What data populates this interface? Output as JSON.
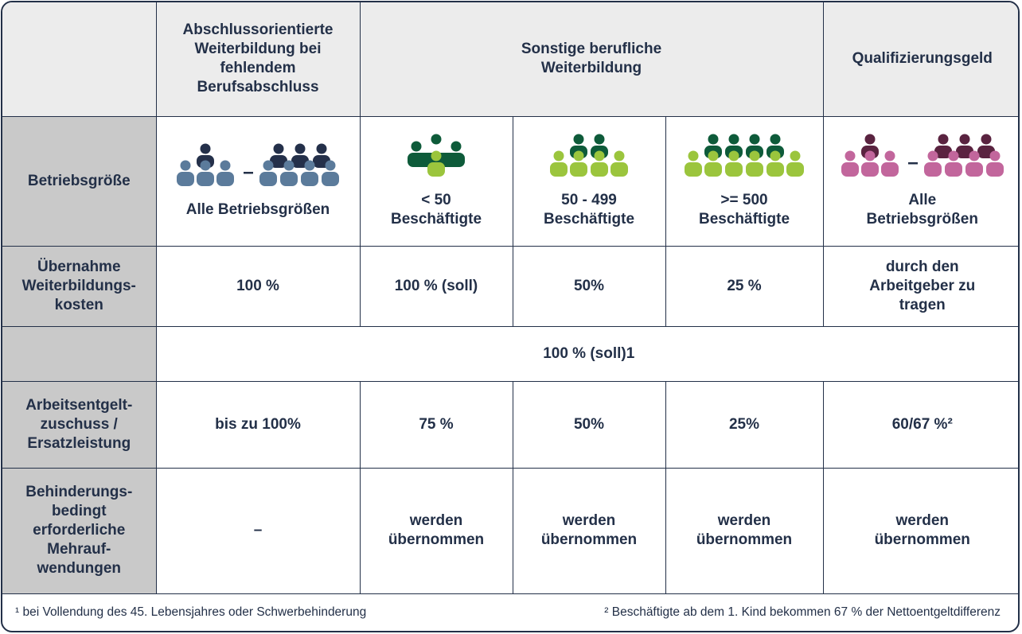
{
  "header": {
    "col1": "Abschlussorientierte Weiterbildung bei fehlendem Berufsabschluss",
    "col2": "Sonstige berufliche Weiterbildung",
    "col3": "Qualifizierungsgeld"
  },
  "rows": {
    "betriebsgroesse": {
      "label": "Betriebsgröße",
      "c1": "Alle Betriebsgrößen",
      "c2": "< 50 Beschäftigte",
      "c3": "50 - 499 Beschäftigte",
      "c4": ">= 500 Beschäftigte",
      "c5": "Alle Betriebsgrößen"
    },
    "uebernahme": {
      "label": "Übernahme Weiterbildungs-kosten",
      "c1": "100 %",
      "c2": "100 % (soll)",
      "c3": "50%",
      "c4": "25 %",
      "c5": "durch den Arbeitgeber zu tragen"
    },
    "soll": {
      "value": "100 % (soll)1"
    },
    "arbeitsentgelt": {
      "label": "Arbeitsentgelt-zuschuss / Ersatzleistung",
      "c1": "bis zu 100%",
      "c2": "75 %",
      "c3": "50%",
      "c4": "25%",
      "c5": "60/67 %²"
    },
    "behinderung": {
      "label": "Behinderungs-bedingt erforderliche Mehrauf-wendungen",
      "c1": "–",
      "c2": "werden übernommen",
      "c3": "werden übernommen",
      "c4": "werden übernommen",
      "c5": "werden übernommen"
    }
  },
  "footnotes": {
    "left": "¹ bei Vollendung des 45. Lebensjahres oder Schwerbehinderung",
    "right": "² Beschäftigte ab dem 1. Kind bekommen 67 % der Nettoentgeltdifferenz"
  },
  "colors": {
    "blue_dark": "#24304a",
    "blue_light": "#5b7b9b",
    "green_dark": "#0e5b3a",
    "green_light": "#9bc53d",
    "purple_dark": "#5a2340",
    "purple_light": "#c2669c",
    "header_bg": "#ececec",
    "rowheader_bg": "#c9c9c9"
  },
  "icons": {
    "group_all_left": "people-group-icon",
    "group_small": "people-group-icon",
    "group_medium": "people-group-icon",
    "group_large": "people-group-icon",
    "group_all_right": "people-group-icon"
  }
}
